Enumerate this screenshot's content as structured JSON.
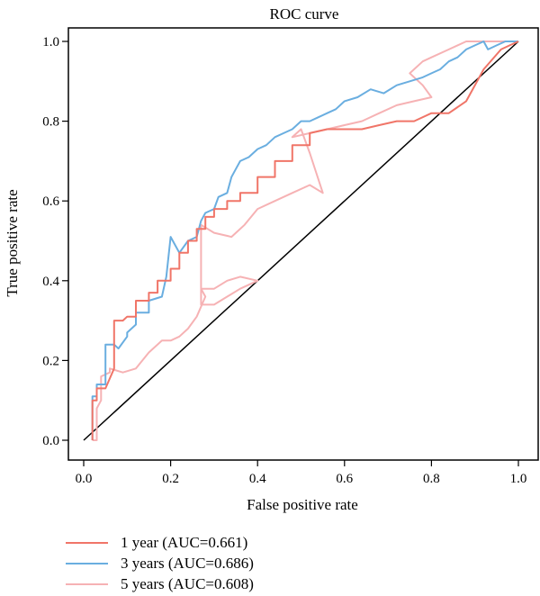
{
  "chart_data": {
    "type": "line",
    "title": "ROC curve",
    "xlabel": "False positive rate",
    "ylabel": "True positive rate",
    "xlim": [
      0.0,
      1.0
    ],
    "ylim": [
      0.0,
      1.0
    ],
    "xticks": [
      "0.0",
      "0.2",
      "0.4",
      "0.6",
      "0.8",
      "1.0"
    ],
    "yticks": [
      "0.0",
      "0.2",
      "0.4",
      "0.6",
      "0.8",
      "1.0"
    ],
    "grid": false,
    "legend_position": "bottom-left",
    "reference_line": {
      "x": [
        0,
        1
      ],
      "y": [
        0,
        1
      ],
      "color": "#000000"
    },
    "series": [
      {
        "name": "1 year (AUC=0.661)",
        "color": "#f07568",
        "x": [
          0.02,
          0.02,
          0.03,
          0.03,
          0.05,
          0.07,
          0.07,
          0.09,
          0.1,
          0.12,
          0.12,
          0.15,
          0.15,
          0.17,
          0.17,
          0.2,
          0.2,
          0.22,
          0.22,
          0.24,
          0.24,
          0.26,
          0.26,
          0.28,
          0.28,
          0.3,
          0.3,
          0.33,
          0.33,
          0.36,
          0.36,
          0.4,
          0.4,
          0.44,
          0.44,
          0.48,
          0.48,
          0.52,
          0.52,
          0.56,
          0.6,
          0.64,
          0.68,
          0.72,
          0.76,
          0.8,
          0.84,
          0.88,
          0.92,
          0.96,
          0.98,
          1.0
        ],
        "y": [
          0.0,
          0.1,
          0.1,
          0.13,
          0.13,
          0.18,
          0.3,
          0.3,
          0.31,
          0.31,
          0.35,
          0.35,
          0.37,
          0.37,
          0.4,
          0.4,
          0.43,
          0.43,
          0.47,
          0.47,
          0.5,
          0.5,
          0.53,
          0.53,
          0.56,
          0.56,
          0.58,
          0.58,
          0.6,
          0.6,
          0.62,
          0.62,
          0.66,
          0.66,
          0.7,
          0.7,
          0.74,
          0.74,
          0.77,
          0.78,
          0.78,
          0.78,
          0.79,
          0.8,
          0.8,
          0.82,
          0.82,
          0.85,
          0.93,
          0.98,
          0.99,
          1.0
        ]
      },
      {
        "name": "3 years (AUC=0.686)",
        "color": "#6aaee0",
        "x": [
          0.02,
          0.02,
          0.03,
          0.03,
          0.05,
          0.05,
          0.07,
          0.08,
          0.1,
          0.1,
          0.12,
          0.12,
          0.15,
          0.15,
          0.18,
          0.19,
          0.2,
          0.21,
          0.22,
          0.24,
          0.26,
          0.27,
          0.28,
          0.3,
          0.31,
          0.33,
          0.34,
          0.35,
          0.36,
          0.38,
          0.4,
          0.42,
          0.44,
          0.46,
          0.48,
          0.5,
          0.52,
          0.54,
          0.56,
          0.58,
          0.6,
          0.63,
          0.66,
          0.69,
          0.72,
          0.75,
          0.78,
          0.8,
          0.82,
          0.84,
          0.86,
          0.88,
          0.9,
          0.92,
          0.93,
          0.95,
          0.97,
          1.0
        ],
        "y": [
          0.0,
          0.11,
          0.11,
          0.14,
          0.14,
          0.24,
          0.24,
          0.23,
          0.26,
          0.27,
          0.29,
          0.32,
          0.32,
          0.35,
          0.36,
          0.41,
          0.51,
          0.49,
          0.47,
          0.5,
          0.51,
          0.55,
          0.57,
          0.58,
          0.61,
          0.62,
          0.66,
          0.68,
          0.7,
          0.71,
          0.73,
          0.74,
          0.76,
          0.77,
          0.78,
          0.8,
          0.8,
          0.81,
          0.82,
          0.83,
          0.85,
          0.86,
          0.88,
          0.87,
          0.89,
          0.9,
          0.91,
          0.92,
          0.93,
          0.95,
          0.96,
          0.98,
          0.99,
          1.0,
          0.98,
          0.99,
          1.0,
          1.0
        ]
      },
      {
        "name": "5 years (AUC=0.608)",
        "color": "#f6b2b4",
        "x": [
          0.02,
          0.03,
          0.03,
          0.04,
          0.04,
          0.06,
          0.06,
          0.09,
          0.12,
          0.15,
          0.18,
          0.2,
          0.22,
          0.24,
          0.26,
          0.28,
          0.27,
          0.3,
          0.33,
          0.36,
          0.4,
          0.36,
          0.33,
          0.3,
          0.27,
          0.27,
          0.3,
          0.34,
          0.37,
          0.4,
          0.44,
          0.48,
          0.52,
          0.55,
          0.52,
          0.5,
          0.48,
          0.52,
          0.56,
          0.6,
          0.64,
          0.68,
          0.72,
          0.76,
          0.8,
          0.78,
          0.75,
          0.78,
          0.8,
          0.84,
          0.88,
          0.92,
          0.96,
          1.0
        ],
        "y": [
          0.0,
          0.0,
          0.08,
          0.1,
          0.16,
          0.17,
          0.18,
          0.17,
          0.18,
          0.22,
          0.25,
          0.25,
          0.26,
          0.28,
          0.31,
          0.36,
          0.38,
          0.38,
          0.4,
          0.41,
          0.4,
          0.38,
          0.36,
          0.34,
          0.34,
          0.54,
          0.52,
          0.51,
          0.54,
          0.58,
          0.6,
          0.62,
          0.64,
          0.62,
          0.72,
          0.78,
          0.76,
          0.77,
          0.78,
          0.79,
          0.8,
          0.82,
          0.84,
          0.85,
          0.86,
          0.89,
          0.92,
          0.95,
          0.96,
          0.98,
          1.0,
          1.0,
          1.0,
          1.0
        ]
      }
    ]
  }
}
